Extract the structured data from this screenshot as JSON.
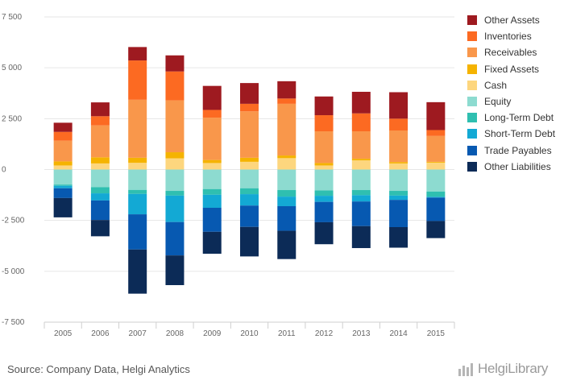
{
  "chart_data": {
    "type": "bar",
    "stacked": true,
    "categories": [
      "2005",
      "2006",
      "2007",
      "2008",
      "2009",
      "2010",
      "2011",
      "2012",
      "2013",
      "2014",
      "2015"
    ],
    "ylim": [
      -7500,
      7500
    ],
    "yticks": [
      7500,
      5000,
      2500,
      0,
      -2500,
      -5000,
      -7500
    ],
    "ytick_labels": [
      "7 500",
      "5 000",
      "2 500",
      "0",
      "-2 500",
      "-5 000",
      "-7 500"
    ],
    "grid": true,
    "legend_position": "right",
    "series": [
      {
        "name": "Cash",
        "group": "assets",
        "color": "#fdd67e",
        "values": [
          200,
          300,
          330,
          550,
          320,
          380,
          560,
          200,
          450,
          300,
          340
        ]
      },
      {
        "name": "Fixed Assets",
        "group": "assets",
        "color": "#f5b300",
        "values": [
          200,
          300,
          250,
          300,
          150,
          200,
          130,
          120,
          80,
          70,
          40
        ]
      },
      {
        "name": "Receivables",
        "group": "assets",
        "color": "#f9974b",
        "values": [
          1020,
          1570,
          2850,
          2550,
          2080,
          2280,
          2540,
          1560,
          1350,
          1550,
          1270
        ]
      },
      {
        "name": "Inventories",
        "group": "assets",
        "color": "#fc6a22",
        "values": [
          430,
          450,
          1930,
          1420,
          380,
          370,
          260,
          790,
          880,
          580,
          290
        ]
      },
      {
        "name": "Other Assets",
        "group": "assets",
        "color": "#9e1a20",
        "values": [
          450,
          680,
          660,
          790,
          1180,
          1020,
          850,
          920,
          1060,
          1300,
          1370
        ]
      },
      {
        "name": "Equity",
        "group": "liabilities",
        "color": "#8ddbd0",
        "values": [
          -740,
          -870,
          -1000,
          -1050,
          -960,
          -920,
          -1010,
          -1030,
          -1010,
          -1050,
          -1080
        ]
      },
      {
        "name": "Long-Term Debt",
        "group": "liabilities",
        "color": "#2fbfb0",
        "values": [
          -60,
          -300,
          -200,
          -230,
          -280,
          -290,
          -320,
          -260,
          -250,
          -230,
          -260
        ]
      },
      {
        "name": "Short-Term Debt",
        "group": "liabilities",
        "color": "#13a9d4",
        "values": [
          -120,
          -350,
          -1000,
          -1300,
          -640,
          -560,
          -470,
          -300,
          -310,
          -210,
          -40
        ]
      },
      {
        "name": "Trade Payables",
        "group": "liabilities",
        "color": "#0759b1",
        "values": [
          -480,
          -960,
          -1730,
          -1640,
          -1180,
          -1050,
          -1210,
          -1000,
          -1210,
          -1340,
          -1150
        ]
      },
      {
        "name": "Other Liabilities",
        "group": "liabilities",
        "color": "#0c2b57",
        "values": [
          -950,
          -800,
          -2170,
          -1460,
          -1080,
          -1450,
          -1390,
          -1080,
          -1080,
          -1010,
          -840
        ]
      }
    ]
  },
  "legend": {
    "items": [
      {
        "label": "Other Assets",
        "color": "#9e1a20"
      },
      {
        "label": "Inventories",
        "color": "#fc6a22"
      },
      {
        "label": "Receivables",
        "color": "#f9974b"
      },
      {
        "label": "Fixed Assets",
        "color": "#f5b300"
      },
      {
        "label": "Cash",
        "color": "#fdd67e"
      },
      {
        "label": "Equity",
        "color": "#8ddbd0"
      },
      {
        "label": "Long-Term Debt",
        "color": "#2fbfb0"
      },
      {
        "label": "Short-Term Debt",
        "color": "#13a9d4"
      },
      {
        "label": "Trade Payables",
        "color": "#0759b1"
      },
      {
        "label": "Other Liabilities",
        "color": "#0c2b57"
      }
    ]
  },
  "footer": {
    "source": "Source: Company Data, Helgi Analytics",
    "logo_text": "HelgiLibrary",
    "logo_icon": "bar-chart-logo-icon"
  }
}
